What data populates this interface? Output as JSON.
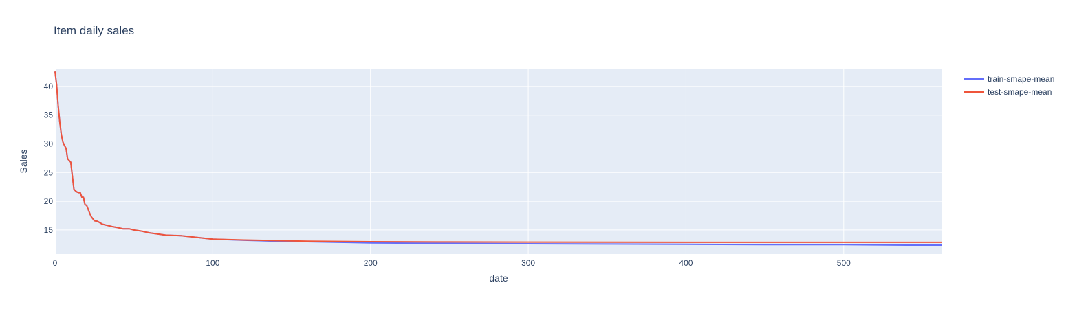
{
  "chart_data": {
    "type": "line",
    "title": "Item daily sales",
    "xlabel": "date",
    "ylabel": "Sales",
    "xlim": [
      0,
      562
    ],
    "ylim": [
      10.8,
      43.1
    ],
    "x_ticks": [
      0,
      100,
      200,
      300,
      400,
      500
    ],
    "y_ticks": [
      15,
      20,
      25,
      30,
      35,
      40
    ],
    "grid": true,
    "legend_position": "top-right",
    "colors": {
      "plot_bg": "#e5ecf6",
      "grid": "#ffffff",
      "text": "#2a3f5f"
    },
    "series": [
      {
        "name": "train-smape-mean",
        "color": "#636efa",
        "x": [
          0,
          1,
          2,
          3,
          4,
          5,
          6,
          7,
          8,
          9,
          10,
          11,
          12,
          13,
          14,
          15,
          16,
          17,
          18,
          19,
          20,
          21,
          22,
          23,
          25,
          27,
          30,
          33,
          36,
          40,
          43,
          47,
          50,
          55,
          60,
          65,
          70,
          80,
          90,
          100,
          120,
          140,
          160,
          180,
          200,
          250,
          300,
          350,
          400,
          450,
          500,
          520,
          540,
          562
        ],
        "y": [
          42.6,
          40.3,
          36.6,
          33.8,
          31.6,
          30.3,
          29.7,
          29.2,
          27.4,
          27.1,
          26.8,
          24.4,
          22.1,
          21.8,
          21.6,
          21.5,
          21.5,
          20.7,
          20.7,
          19.4,
          19.3,
          18.6,
          17.9,
          17.3,
          16.6,
          16.5,
          16.0,
          15.8,
          15.6,
          15.4,
          15.2,
          15.2,
          15.0,
          14.8,
          14.5,
          14.3,
          14.1,
          14.0,
          13.7,
          13.4,
          13.2,
          13.05,
          12.95,
          12.85,
          12.75,
          12.65,
          12.6,
          12.55,
          12.5,
          12.45,
          12.45,
          12.4,
          12.35,
          12.35
        ]
      },
      {
        "name": "test-smape-mean",
        "color": "#ef553b",
        "x": [
          0,
          1,
          2,
          3,
          4,
          5,
          6,
          7,
          8,
          9,
          10,
          11,
          12,
          13,
          14,
          15,
          16,
          17,
          18,
          19,
          20,
          21,
          22,
          23,
          25,
          27,
          30,
          33,
          36,
          40,
          43,
          47,
          50,
          55,
          60,
          65,
          70,
          80,
          90,
          100,
          120,
          140,
          160,
          180,
          200,
          250,
          300,
          350,
          400,
          450,
          500,
          520,
          540,
          562
        ],
        "y": [
          42.6,
          40.3,
          36.6,
          33.8,
          31.6,
          30.3,
          29.7,
          29.2,
          27.4,
          27.1,
          26.8,
          24.4,
          22.1,
          21.8,
          21.6,
          21.5,
          21.5,
          20.7,
          20.7,
          19.4,
          19.3,
          18.6,
          17.9,
          17.3,
          16.6,
          16.5,
          16.0,
          15.8,
          15.6,
          15.4,
          15.2,
          15.2,
          15.0,
          14.8,
          14.5,
          14.3,
          14.1,
          14.0,
          13.7,
          13.4,
          13.25,
          13.15,
          13.05,
          13.0,
          12.95,
          12.9,
          12.88,
          12.86,
          12.85,
          12.85,
          12.85,
          12.85,
          12.85,
          12.85
        ]
      }
    ]
  }
}
